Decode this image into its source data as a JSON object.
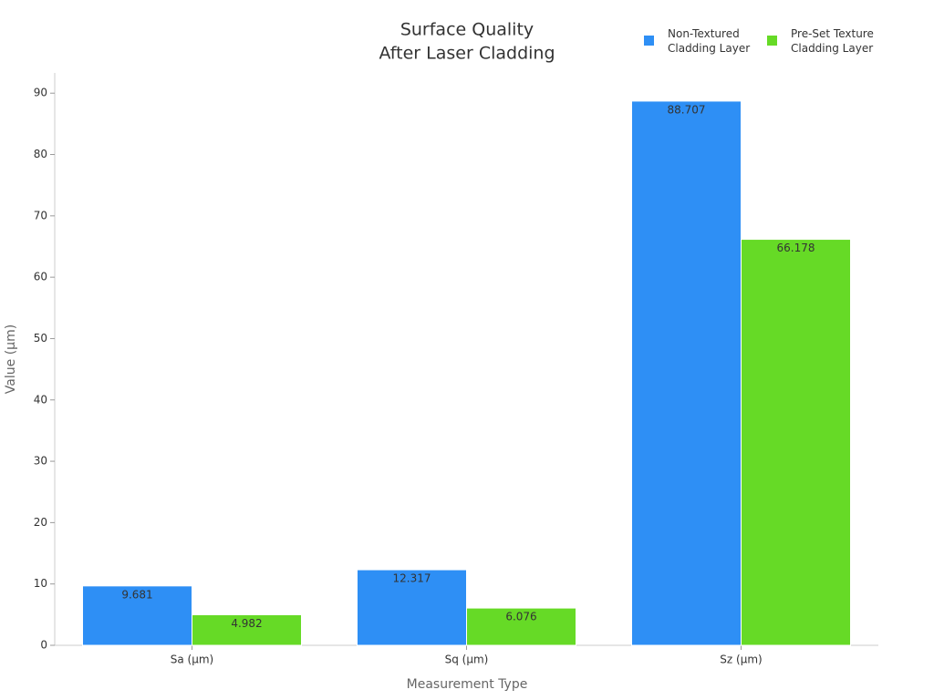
{
  "chart_data": {
    "type": "bar",
    "title": [
      "Surface Quality",
      "After Laser Cladding"
    ],
    "x_label": "Measurement Type",
    "y_label": "Value (µm)",
    "categories": [
      "Sa (µm)",
      "Sq (µm)",
      "Sz (µm)"
    ],
    "series": [
      {
        "name": "Non-Textured Cladding Layer",
        "color": "#2e8ff5",
        "values": [
          9.681,
          12.317,
          88.707
        ]
      },
      {
        "name": "Pre-Set Texture Cladding Layer",
        "color": "#66da26",
        "values": [
          4.982,
          6.076,
          66.178
        ]
      }
    ],
    "ylim": [
      0,
      93.3
    ],
    "yticks": [
      0,
      10,
      20,
      30,
      40,
      50,
      60,
      70,
      80,
      90
    ]
  }
}
